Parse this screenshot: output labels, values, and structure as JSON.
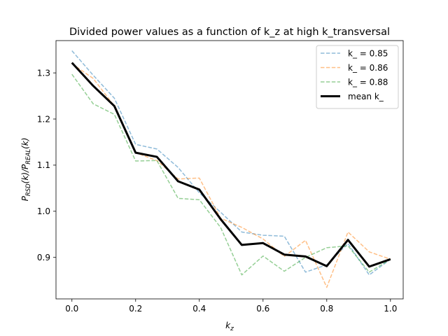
{
  "chart_data": {
    "type": "line",
    "title": "Divided power values as a function of k_z at high k_transversal",
    "xlabel": "k_z",
    "ylabel": "P_RSD(k)/P_REAL(k)",
    "xlim": [
      -0.05,
      1.04
    ],
    "ylim": [
      0.81,
      1.37
    ],
    "xticks": [
      0.0,
      0.2,
      0.4,
      0.6,
      0.8,
      1.0
    ],
    "xtick_labels": [
      "0.0",
      "0.2",
      "0.4",
      "0.6",
      "0.8",
      "1.0"
    ],
    "yticks": [
      0.9,
      1.0,
      1.1,
      1.2,
      1.3
    ],
    "ytick_labels": [
      "0.9",
      "1.0",
      "1.1",
      "1.2",
      "1.3"
    ],
    "grid": false,
    "legend_position": "top-right",
    "x": [
      0.0,
      0.0667,
      0.1333,
      0.2,
      0.2667,
      0.3333,
      0.4,
      0.4667,
      0.5333,
      0.6,
      0.6667,
      0.7333,
      0.8,
      0.8667,
      0.9333,
      1.0
    ],
    "series": [
      {
        "name": "k_ = 0.85",
        "color": "#1f77b4",
        "style": "dashed",
        "opacity": 0.5,
        "values": [
          1.348,
          1.295,
          1.245,
          1.145,
          1.135,
          1.095,
          1.04,
          0.998,
          0.955,
          0.948,
          0.946,
          0.868,
          0.884,
          0.93,
          0.862,
          0.896
        ]
      },
      {
        "name": "k_ = 0.86",
        "color": "#ff7f0e",
        "style": "dashed",
        "opacity": 0.5,
        "values": [
          1.32,
          1.288,
          1.228,
          1.127,
          1.11,
          1.07,
          1.072,
          0.985,
          0.965,
          0.94,
          0.902,
          0.937,
          0.835,
          0.955,
          0.912,
          0.896
        ]
      },
      {
        "name": "k_ = 0.88",
        "color": "#2ca02c",
        "style": "dashed",
        "opacity": 0.5,
        "values": [
          1.297,
          1.233,
          1.21,
          1.109,
          1.11,
          1.028,
          1.025,
          0.965,
          0.862,
          0.903,
          0.87,
          0.9,
          0.921,
          0.925,
          0.868,
          0.896
        ]
      },
      {
        "name": "mean k_",
        "color": "#000000",
        "style": "solid",
        "opacity": 1.0,
        "values": [
          1.322,
          1.272,
          1.228,
          1.127,
          1.118,
          1.065,
          1.047,
          0.983,
          0.927,
          0.931,
          0.906,
          0.902,
          0.881,
          0.938,
          0.88,
          0.896
        ]
      }
    ]
  }
}
